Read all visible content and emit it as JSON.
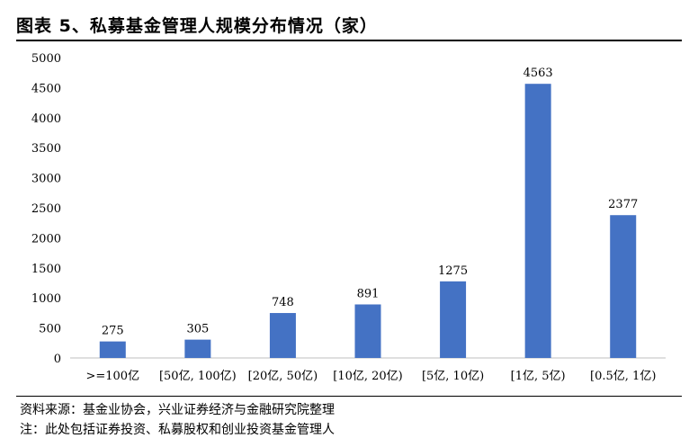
{
  "header": {
    "title": "图表 5、私募基金管理人规模分布情况（家）"
  },
  "footer": {
    "source": "资料来源：基金业协会，兴业证券经济与金融研究院整理",
    "note": "注：此处包括证券投资、私募股权和创业投资基金管理人"
  },
  "chart_data": {
    "type": "bar",
    "title": "",
    "xlabel": "",
    "ylabel": "",
    "categories": [
      ">=100亿",
      "[50亿, 100亿)",
      "[20亿, 50亿)",
      "[10亿, 20亿)",
      "[5亿, 10亿)",
      "[1亿, 5亿)",
      "[0.5亿, 1亿)"
    ],
    "values": [
      275,
      305,
      748,
      891,
      1275,
      4563,
      2377
    ],
    "ylim": [
      0,
      5000
    ],
    "yticks": [
      0,
      500,
      1000,
      1500,
      2000,
      2500,
      3000,
      3500,
      4000,
      4500,
      5000
    ],
    "grid": false,
    "legend": "none",
    "bar_color": "#4472C4",
    "data_labels": true
  }
}
